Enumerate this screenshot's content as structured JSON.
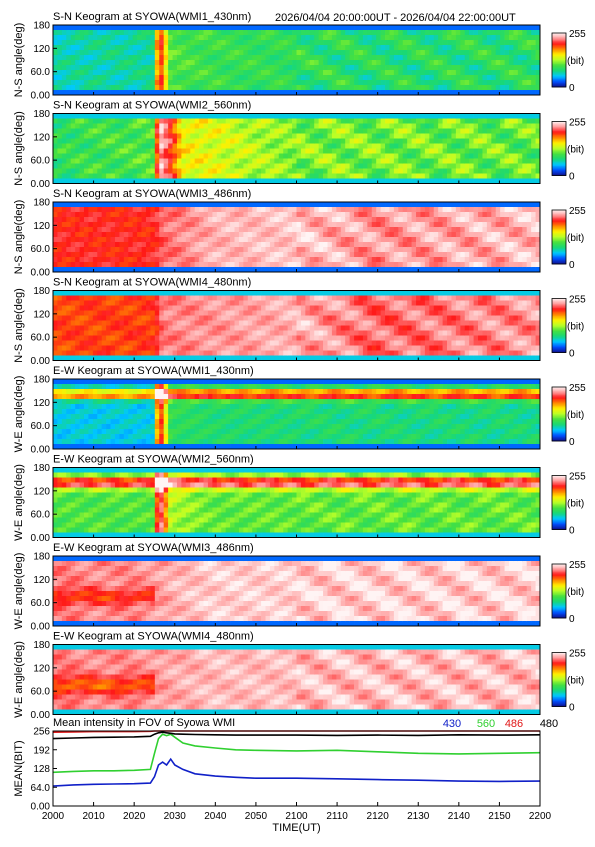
{
  "header": {
    "time_range": "2026/04/04 20:00:00UT - 2026/04/04 22:00:00UT"
  },
  "colors": {
    "colorbar": [
      "#10108c",
      "#0050ff",
      "#00c8ff",
      "#18d878",
      "#46e040",
      "#b8ff28",
      "#fff000",
      "#ff8800",
      "#ff1818",
      "#ff9898",
      "#fff4f4"
    ],
    "series_430": "#1020c8",
    "series_560": "#30d030",
    "series_486": "#e01818",
    "series_480": "#000000"
  },
  "chart_data": [
    {
      "type": "heatmap",
      "title": "S-N Keogram at SYOWA(WMI1_430nm)",
      "ylabel": "N-S angle(deg)",
      "yticks": [
        "0.00",
        "60.0",
        "120",
        "180"
      ],
      "ylim": [
        0,
        180
      ],
      "colorbar": {
        "min_label": "0",
        "max_label": "255",
        "unit": "(bit)"
      },
      "intensity_profile": {
        "t": [
          0,
          25,
          26,
          29,
          40,
          80,
          120
        ],
        "v": [
          0.26,
          0.28,
          0.88,
          0.4,
          0.37,
          0.33,
          0.34
        ]
      },
      "overlays": [],
      "mottling": 0.04,
      "waves": 0.06
    },
    {
      "type": "heatmap",
      "title": "S-N Keogram at SYOWA(WMI2_560nm)",
      "ylabel": "N-S angle(deg)",
      "yticks": [
        "0.00",
        "60.0",
        "120",
        "180"
      ],
      "ylim": [
        0,
        180
      ],
      "colorbar": {
        "min_label": "0",
        "max_label": "255",
        "unit": "(bit)"
      },
      "intensity_profile": {
        "t": [
          0,
          25,
          26,
          29,
          32,
          40,
          60,
          120
        ],
        "v": [
          0.35,
          0.4,
          0.97,
          0.8,
          0.58,
          0.55,
          0.45,
          0.42
        ]
      },
      "overlays": [],
      "mottling": 0.06,
      "waves": 0.07
    },
    {
      "type": "heatmap",
      "title": "S-N Keogram at SYOWA(WMI3_486nm)",
      "ylabel": "N-S angle(deg)",
      "yticks": [
        "0.00",
        "60.0",
        "120",
        "180"
      ],
      "ylim": [
        0,
        180
      ],
      "colorbar": {
        "min_label": "0",
        "max_label": "255",
        "unit": "(bit)"
      },
      "intensity_profile": {
        "t": [
          0,
          25,
          27,
          40,
          60,
          80,
          120
        ],
        "v": [
          0.8,
          0.8,
          0.86,
          0.93,
          0.95,
          0.9,
          0.94
        ]
      },
      "overlays": [],
      "mottling": 0.03,
      "waves": 0.05
    },
    {
      "type": "heatmap",
      "title": "S-N Keogram at SYOWA(WMI4_480nm)",
      "ylabel": "N-S angle(deg)",
      "yticks": [
        "0.00",
        "60.0",
        "120",
        "180"
      ],
      "ylim": [
        0,
        180
      ],
      "colorbar": {
        "min_label": "0",
        "max_label": "255",
        "unit": "(bit)"
      },
      "intensity_profile": {
        "t": [
          0,
          25,
          27,
          40,
          60,
          80,
          120
        ],
        "v": [
          0.76,
          0.77,
          0.88,
          0.9,
          0.93,
          0.86,
          0.9
        ]
      },
      "overlays": [],
      "mottling": 0.03,
      "waves": 0.05
    },
    {
      "type": "heatmap",
      "title": "E-W Keogram at SYOWA(WMI1_430nm)",
      "ylabel": "W-E angle(deg)",
      "yticks": [
        "0.00",
        "60.0",
        "120",
        "180"
      ],
      "ylim": [
        0,
        180
      ],
      "colorbar": {
        "min_label": "0",
        "max_label": "255",
        "unit": "(bit)"
      },
      "intensity_profile": {
        "t": [
          0,
          25,
          26,
          29,
          40,
          120
        ],
        "v": [
          0.22,
          0.22,
          0.9,
          0.35,
          0.32,
          0.3
        ]
      },
      "overlays": [
        {
          "angle": 140,
          "width": 12,
          "boost": 0.55
        }
      ],
      "mottling": 0.04,
      "waves": 0.02
    },
    {
      "type": "heatmap",
      "title": "E-W Keogram at SYOWA(WMI2_560nm)",
      "ylabel": "W-E angle(deg)",
      "yticks": [
        "0.00",
        "60.0",
        "120",
        "180"
      ],
      "ylim": [
        0,
        180
      ],
      "colorbar": {
        "min_label": "0",
        "max_label": "255",
        "unit": "(bit)"
      },
      "intensity_profile": {
        "t": [
          0,
          25,
          26,
          29,
          40,
          120
        ],
        "v": [
          0.4,
          0.4,
          0.98,
          0.5,
          0.42,
          0.42
        ]
      },
      "overlays": [
        {
          "angle": 140,
          "width": 14,
          "boost": 0.5
        }
      ],
      "mottling": 0.05,
      "waves": 0.03
    },
    {
      "type": "heatmap",
      "title": "E-W Keogram at SYOWA(WMI3_486nm)",
      "ylabel": "W-E angle(deg)",
      "yticks": [
        "0.00",
        "60.0",
        "120",
        "180"
      ],
      "ylim": [
        0,
        180
      ],
      "colorbar": {
        "min_label": "0",
        "max_label": "255",
        "unit": "(bit)"
      },
      "intensity_profile": {
        "t": [
          0,
          25,
          30,
          40,
          120
        ],
        "v": [
          0.88,
          0.9,
          0.93,
          0.96,
          0.96
        ]
      },
      "overlays": [
        {
          "angle": 75,
          "width": 20,
          "boost": -0.12,
          "t_end": 25
        }
      ],
      "mottling": 0.03,
      "waves": 0.05
    },
    {
      "type": "heatmap",
      "title": "E-W Keogram at SYOWA(WMI4_480nm)",
      "ylabel": "W-E angle(deg)",
      "yticks": [
        "0.00",
        "60.0",
        "120",
        "180"
      ],
      "ylim": [
        0,
        180
      ],
      "colorbar": {
        "min_label": "0",
        "max_label": "255",
        "unit": "(bit)"
      },
      "intensity_profile": {
        "t": [
          0,
          25,
          30,
          40,
          120
        ],
        "v": [
          0.88,
          0.9,
          0.92,
          0.94,
          0.94
        ]
      },
      "overlays": [
        {
          "angle": 75,
          "width": 22,
          "boost": -0.16,
          "t_end": 25
        }
      ],
      "mottling": 0.03,
      "waves": 0.05
    },
    {
      "type": "line",
      "title": "Mean intensity in FOV of Syowa WMI",
      "xlabel": "TIME(UT)",
      "ylabel": "MEAN(BIT)",
      "xticks": [
        "2000",
        "2010",
        "2020",
        "2030",
        "2040",
        "2050",
        "2100",
        "2110",
        "2120",
        "2130",
        "2140",
        "2150",
        "2200"
      ],
      "yticks": [
        "0.00",
        "64.0",
        "128",
        "192",
        "256"
      ],
      "xlim": [
        0,
        120
      ],
      "ylim": [
        0,
        256
      ],
      "x": [
        0,
        5,
        10,
        15,
        20,
        24,
        25,
        26,
        27,
        28,
        29,
        30,
        32,
        35,
        40,
        45,
        50,
        60,
        70,
        80,
        90,
        100,
        110,
        120
      ],
      "series": [
        {
          "name": "430",
          "color": "#1020c8",
          "values": [
            68,
            72,
            74,
            75,
            76,
            78,
            100,
            140,
            150,
            140,
            160,
            140,
            125,
            110,
            102,
            98,
            95,
            95,
            93,
            90,
            88,
            85,
            84,
            85
          ]
        },
        {
          "name": "560",
          "color": "#30d030",
          "values": [
            115,
            118,
            120,
            120,
            122,
            125,
            180,
            230,
            245,
            240,
            245,
            235,
            215,
            205,
            198,
            192,
            190,
            188,
            190,
            185,
            180,
            178,
            180,
            182
          ]
        },
        {
          "name": "486",
          "color": "#e01818",
          "values": [
            252,
            253,
            254,
            254,
            254,
            255,
            256,
            256,
            256,
            256,
            256,
            256,
            256,
            256,
            256,
            256,
            256,
            256,
            256,
            256,
            256,
            256,
            256,
            256
          ]
        },
        {
          "name": "480",
          "color": "#000000",
          "values": [
            230,
            232,
            234,
            235,
            236,
            238,
            245,
            250,
            252,
            250,
            248,
            246,
            245,
            244,
            243,
            242,
            242,
            242,
            241,
            242,
            241,
            243,
            242,
            243
          ]
        }
      ]
    }
  ]
}
